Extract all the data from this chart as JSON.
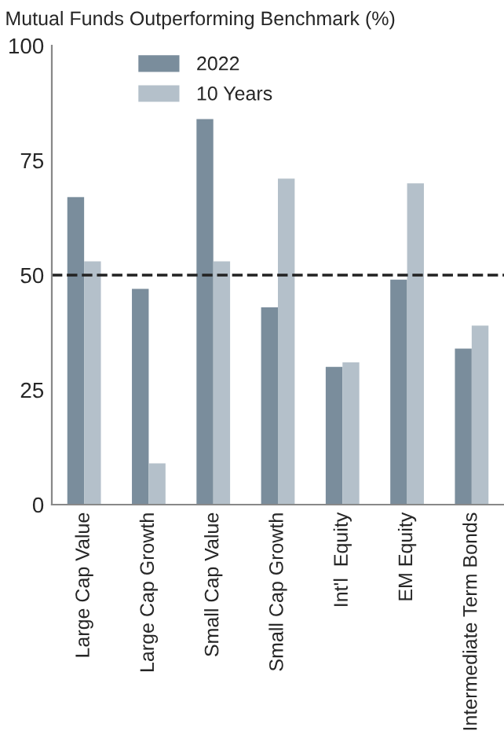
{
  "chart_data": {
    "type": "bar",
    "title": "Mutual Funds Outperforming Benchmark (%)",
    "categories": [
      "Large Cap Value",
      "Large Cap Growth",
      "Small Cap Value",
      "Small Cap Growth",
      "Int'l  Equity",
      "EM Equity",
      "Intermediate Term Bonds"
    ],
    "series": [
      {
        "name": "2022",
        "color": "#7a8d9c",
        "values": [
          67,
          47,
          84,
          43,
          30,
          49,
          34
        ]
      },
      {
        "name": "10 Years",
        "color": "#b4c0ca",
        "values": [
          53,
          9,
          53,
          71,
          31,
          70,
          39
        ]
      }
    ],
    "ylim": [
      0,
      100
    ],
    "yticks": [
      0,
      25,
      50,
      75,
      100
    ],
    "ref_lines": [
      {
        "axis": "y",
        "value": 50,
        "color": "#222222",
        "line_style": "dashed"
      }
    ],
    "grid": false,
    "legend": "top left"
  }
}
